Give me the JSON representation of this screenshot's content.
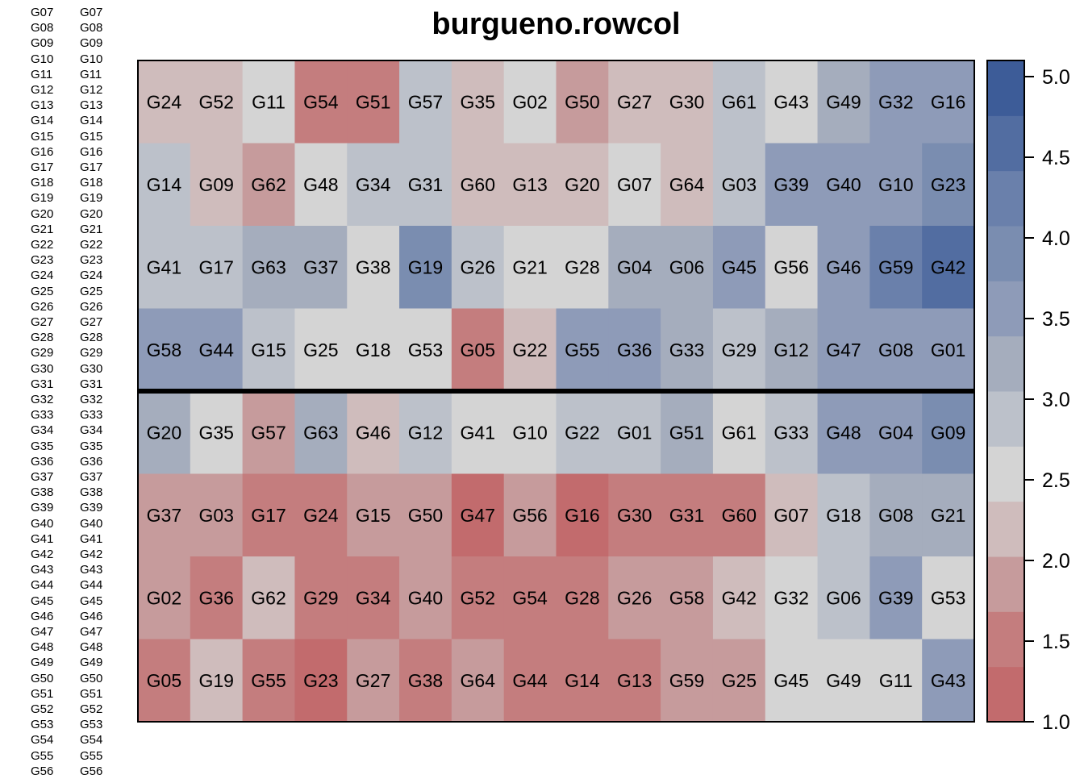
{
  "chart_data": {
    "type": "heatmap",
    "title": "burgueno.rowcol",
    "rows": 8,
    "cols": 16,
    "block_separator_after_row": 4,
    "cells": [
      [
        "G24",
        "G52",
        "G11",
        "G54",
        "G51",
        "G57",
        "G35",
        "G02",
        "G50",
        "G27",
        "G30",
        "G61",
        "G43",
        "G49",
        "G32",
        "G16"
      ],
      [
        "G14",
        "G09",
        "G62",
        "G48",
        "G34",
        "G31",
        "G60",
        "G13",
        "G20",
        "G07",
        "G64",
        "G03",
        "G39",
        "G40",
        "G10",
        "G23"
      ],
      [
        "G41",
        "G17",
        "G63",
        "G37",
        "G38",
        "G19",
        "G26",
        "G21",
        "G28",
        "G04",
        "G06",
        "G45",
        "G56",
        "G46",
        "G59",
        "G42"
      ],
      [
        "G58",
        "G44",
        "G15",
        "G25",
        "G18",
        "G53",
        "G05",
        "G22",
        "G55",
        "G36",
        "G33",
        "G29",
        "G12",
        "G47",
        "G08",
        "G01"
      ],
      [
        "G20",
        "G35",
        "G57",
        "G63",
        "G46",
        "G12",
        "G41",
        "G10",
        "G22",
        "G01",
        "G51",
        "G61",
        "G33",
        "G48",
        "G04",
        "G09"
      ],
      [
        "G37",
        "G03",
        "G17",
        "G24",
        "G15",
        "G50",
        "G47",
        "G56",
        "G16",
        "G30",
        "G31",
        "G60",
        "G07",
        "G18",
        "G08",
        "G21"
      ],
      [
        "G02",
        "G36",
        "G62",
        "G29",
        "G34",
        "G40",
        "G52",
        "G54",
        "G28",
        "G26",
        "G58",
        "G42",
        "G32",
        "G06",
        "G39",
        "G53"
      ],
      [
        "G05",
        "G19",
        "G55",
        "G23",
        "G27",
        "G38",
        "G64",
        "G44",
        "G14",
        "G13",
        "G59",
        "G25",
        "G45",
        "G49",
        "G11",
        "G43"
      ]
    ],
    "values": [
      [
        2.1,
        2.1,
        2.5,
        1.6,
        1.6,
        2.9,
        2.1,
        2.5,
        1.8,
        2.1,
        2.1,
        2.9,
        2.5,
        3.2,
        3.7,
        3.4
      ],
      [
        2.9,
        2.1,
        1.8,
        2.5,
        2.9,
        2.9,
        2.1,
        2.1,
        2.1,
        2.5,
        2.1,
        2.9,
        3.4,
        3.4,
        3.7,
        4.0
      ],
      [
        2.9,
        2.9,
        3.1,
        3.1,
        2.5,
        3.8,
        2.9,
        2.5,
        2.5,
        3.1,
        3.1,
        3.4,
        2.7,
        3.4,
        4.4,
        4.7
      ],
      [
        3.4,
        3.4,
        2.9,
        2.5,
        2.5,
        2.5,
        1.6,
        2.1,
        3.4,
        3.4,
        3.2,
        2.9,
        3.1,
        3.4,
        3.4,
        3.4
      ],
      [
        3.1,
        2.5,
        1.8,
        3.1,
        2.1,
        2.9,
        2.5,
        2.5,
        2.9,
        2.9,
        3.2,
        2.5,
        2.9,
        3.4,
        3.7,
        4.0
      ],
      [
        1.8,
        1.8,
        1.6,
        1.6,
        1.8,
        1.8,
        1.3,
        1.8,
        1.3,
        1.6,
        1.6,
        1.6,
        2.1,
        2.9,
        3.1,
        3.1
      ],
      [
        1.8,
        1.6,
        2.1,
        1.6,
        1.6,
        1.8,
        1.6,
        1.6,
        1.6,
        1.8,
        1.8,
        2.1,
        2.5,
        2.9,
        3.4,
        2.5
      ],
      [
        1.6,
        2.1,
        1.6,
        1.3,
        1.8,
        1.6,
        1.8,
        1.6,
        1.6,
        1.6,
        1.8,
        1.8,
        2.5,
        2.5,
        2.5,
        3.4
      ]
    ],
    "colorbar": {
      "min": 1.0,
      "max": 5.1,
      "ticks": [
        "1.0",
        "1.5",
        "2.0",
        "2.5",
        "3.0",
        "3.5",
        "4.0",
        "4.5",
        "5.0"
      ],
      "tick_values": [
        1.0,
        1.5,
        2.0,
        2.5,
        3.0,
        3.5,
        4.0,
        4.5,
        5.0
      ],
      "palette": [
        "#c26b6d",
        "#c47d7e",
        "#c69b9c",
        "#cfbcbc",
        "#d4d4d4",
        "#bcc1ca",
        "#a5adbd",
        "#8e9bb8",
        "#7a8db0",
        "#6a80ab",
        "#526da1",
        "#3d5c98"
      ]
    },
    "side_labels": [
      "G07",
      "G08",
      "G09",
      "G10",
      "G11",
      "G12",
      "G13",
      "G14",
      "G15",
      "G16",
      "G17",
      "G18",
      "G19",
      "G20",
      "G21",
      "G22",
      "G23",
      "G24",
      "G25",
      "G26",
      "G27",
      "G28",
      "G29",
      "G30",
      "G31",
      "G32",
      "G33",
      "G34",
      "G35",
      "G36",
      "G37",
      "G38",
      "G39",
      "G40",
      "G41",
      "G42",
      "G43",
      "G44",
      "G45",
      "G46",
      "G47",
      "G48",
      "G49",
      "G50",
      "G51",
      "G52",
      "G53",
      "G54",
      "G55",
      "G56"
    ],
    "grid": false,
    "legend": "right"
  }
}
